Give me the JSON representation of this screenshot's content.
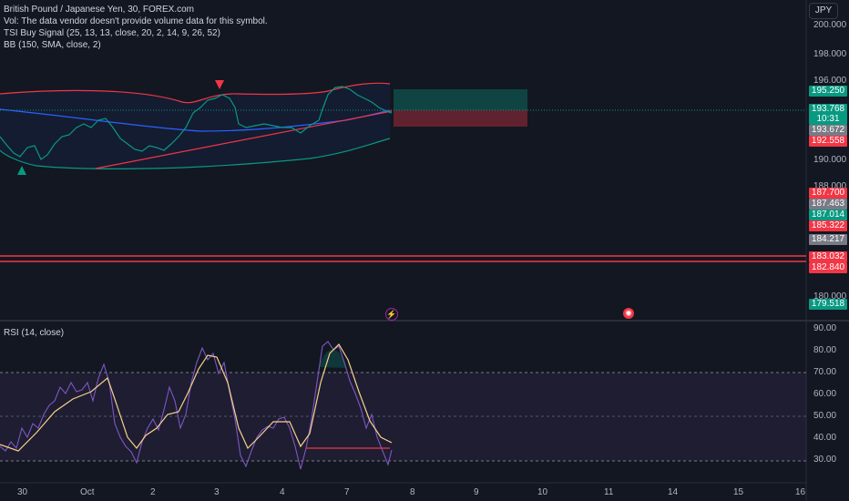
{
  "header": {
    "symbol_line": "British Pound / Japanese Yen, 30, FOREX.com",
    "vol_line": "Vol: The data vendor doesn't provide volume data for this symbol.",
    "tsi_line": "TSI Buy Signal (25, 13, 13, close, 20, 2, 14, 9, 26, 52)",
    "bb_line": "BB (150, SMA, close, 2)"
  },
  "currency": "JPY",
  "price_axis": {
    "ticks": [
      "200.000",
      "198.000",
      "196.000",
      "190.000",
      "188.000",
      "180.000"
    ],
    "badges": [
      {
        "text": "195.250",
        "color": "#089981"
      },
      {
        "text": "193.768",
        "color": "#089981"
      },
      {
        "text": "10:31",
        "color": "#089981"
      },
      {
        "text": "193.672",
        "color": "#787b86"
      },
      {
        "text": "192.558",
        "color": "#f23645"
      },
      {
        "text": "187.700",
        "color": "#f23645"
      },
      {
        "text": "187.463",
        "color": "#787b86"
      },
      {
        "text": "187.014",
        "color": "#089981"
      },
      {
        "text": "185.322",
        "color": "#f23645"
      },
      {
        "text": "184.217",
        "color": "#787b86"
      },
      {
        "text": "183.032",
        "color": "#f23645"
      },
      {
        "text": "182.840",
        "color": "#f23645"
      },
      {
        "text": "179.518",
        "color": "#089981"
      }
    ]
  },
  "rsi": {
    "label": "RSI (14, close)",
    "ticks": [
      "90.00",
      "80.00",
      "70.00",
      "60.00",
      "50.00",
      "40.00",
      "30.00"
    ]
  },
  "time_axis": [
    "30",
    "Oct",
    "2",
    "3",
    "4",
    "7",
    "8",
    "9",
    "10",
    "11",
    "14",
    "15",
    "16"
  ],
  "icons": {
    "lightning": "lightning-icon",
    "earnings": "event-icon"
  },
  "colors": {
    "bg": "#131722",
    "up": "#089981",
    "down": "#f23645",
    "bb_basis": "#2962ff",
    "rsi": "#7e57c2"
  }
}
